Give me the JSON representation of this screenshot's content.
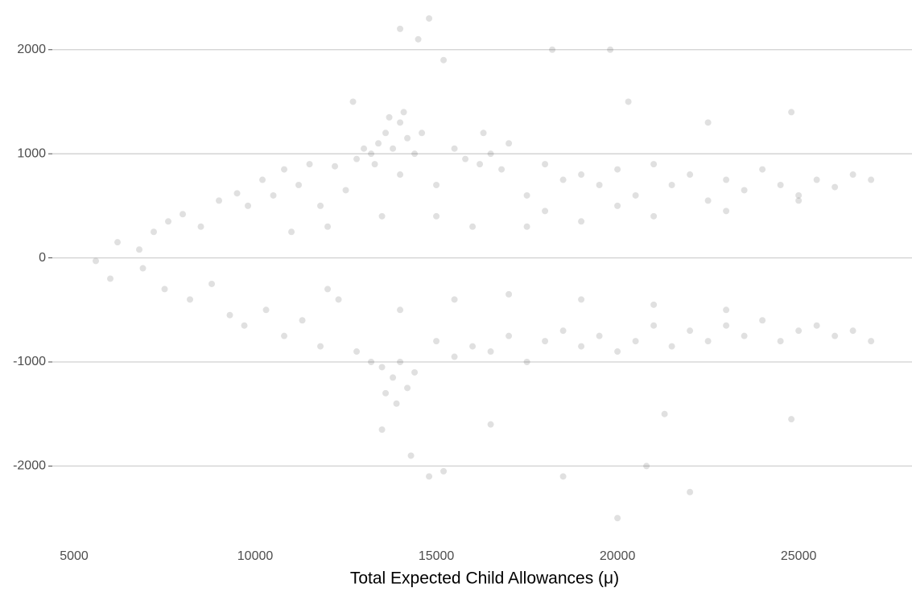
{
  "chart_data": {
    "type": "scatter",
    "x_label": "Total Expected Child Allowances (μ)",
    "color": "#000000",
    "grid": true,
    "xlim": [
      4400,
      28130
    ],
    "ylim": [
      -2700,
      2400
    ],
    "xticks": [
      5000,
      10000,
      15000,
      20000,
      25000
    ],
    "yticks": [
      -2000,
      -1000,
      0,
      1000,
      2000
    ],
    "x": [
      5600,
      6200,
      6800,
      7200,
      7600,
      8000,
      8500,
      9000,
      9500,
      9800,
      10200,
      10500,
      10800,
      11200,
      11500,
      11800,
      12200,
      12500,
      12800,
      13000,
      13200,
      13400,
      13600,
      13800,
      14000,
      14200,
      14400,
      13700,
      14100,
      14600,
      13300,
      14000,
      15000,
      15500,
      15800,
      16200,
      16500,
      16800,
      17000,
      16300,
      17500,
      18000,
      18500,
      19000,
      19500,
      20000,
      20500,
      21000,
      21500,
      22000,
      22500,
      23000,
      23500,
      24000,
      24500,
      25000,
      25500,
      26000,
      26500,
      27000,
      15000,
      16000,
      17500,
      19000,
      21000,
      23000,
      25000,
      12000,
      13500,
      11000,
      18000,
      20000,
      14800,
      14500,
      15200,
      14000,
      18200,
      19800,
      20300,
      12700,
      24800,
      22500,
      6000,
      6900,
      7500,
      8200,
      8800,
      9300,
      9700,
      10300,
      10800,
      11300,
      11800,
      12300,
      12800,
      13200,
      13500,
      13800,
      14000,
      14200,
      13600,
      14400,
      13900,
      15000,
      15500,
      16000,
      16500,
      17000,
      17500,
      18000,
      18500,
      19000,
      19500,
      20000,
      20500,
      21000,
      21500,
      22000,
      22500,
      23000,
      23500,
      24000,
      24500,
      25000,
      25500,
      26000,
      26500,
      27000,
      15500,
      17000,
      19000,
      21000,
      23000,
      12000,
      14000,
      14300,
      14800,
      15200,
      20800,
      21300,
      20000,
      22000,
      18500,
      13500,
      24800,
      16500
    ],
    "y": [
      -30,
      150,
      80,
      250,
      350,
      420,
      300,
      550,
      620,
      500,
      750,
      600,
      850,
      700,
      900,
      500,
      880,
      650,
      950,
      1050,
      1000,
      1100,
      1200,
      1050,
      1300,
      1150,
      1000,
      1350,
      1400,
      1200,
      900,
      800,
      700,
      1050,
      950,
      900,
      1000,
      850,
      1100,
      1200,
      600,
      900,
      750,
      800,
      700,
      850,
      600,
      900,
      700,
      800,
      550,
      750,
      650,
      850,
      700,
      600,
      750,
      680,
      800,
      750,
      400,
      300,
      300,
      350,
      400,
      450,
      550,
      300,
      400,
      250,
      450,
      500,
      2300,
      2100,
      1900,
      2200,
      2000,
      2000,
      1500,
      1500,
      1400,
      1300,
      -200,
      -100,
      -300,
      -400,
      -250,
      -550,
      -650,
      -500,
      -750,
      -600,
      -850,
      -400,
      -900,
      -1000,
      -1050,
      -1150,
      -1000,
      -1250,
      -1300,
      -1100,
      -1400,
      -800,
      -950,
      -850,
      -900,
      -750,
      -1000,
      -800,
      -700,
      -850,
      -750,
      -900,
      -800,
      -650,
      -850,
      -700,
      -800,
      -650,
      -750,
      -600,
      -800,
      -700,
      -650,
      -750,
      -700,
      -800,
      -400,
      -350,
      -400,
      -450,
      -500,
      -300,
      -500,
      -1900,
      -2100,
      -2050,
      -2000,
      -1500,
      -2500,
      -2250,
      -2100,
      -1650,
      -1550,
      -1600
    ]
  }
}
